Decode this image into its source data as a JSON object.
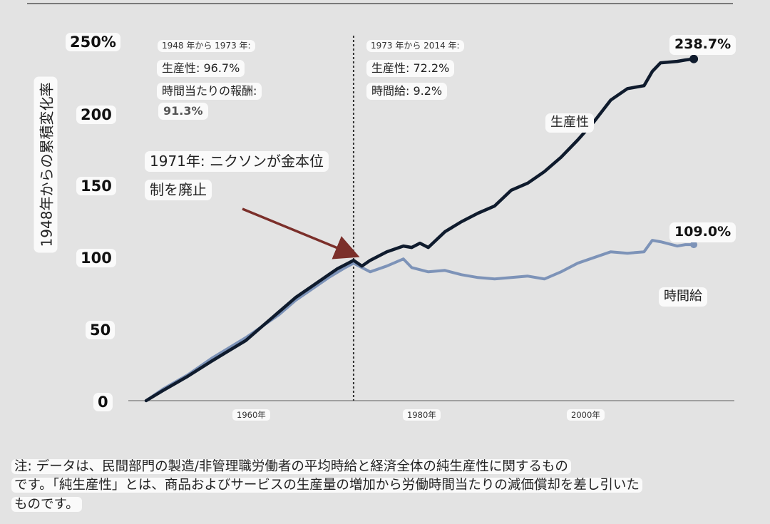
{
  "chart_data": {
    "type": "line",
    "ylabel": "1948年からの累積変化率",
    "y_ticks": [
      "250%",
      "200",
      "150",
      "100",
      "50",
      "0"
    ],
    "x_ticks": [
      "1960年",
      "1980年",
      "2000年"
    ],
    "xlim": [
      1948,
      2017
    ],
    "ylim": [
      0,
      250
    ],
    "grid": false,
    "series": [
      {
        "name": "生産性",
        "color": "#0f1b2d",
        "end_label": "238.7%",
        "x": [
          1948,
          1950,
          1953,
          1956,
          1958,
          1960,
          1962,
          1964,
          1966,
          1968,
          1970,
          1971,
          1973,
          1974,
          1975,
          1977,
          1979,
          1980,
          1981,
          1982,
          1984,
          1986,
          1988,
          1990,
          1992,
          1994,
          1996,
          1998,
          2000,
          2002,
          2004,
          2006,
          2008,
          2009,
          2010,
          2012,
          2013,
          2014
        ],
        "values": [
          0,
          7,
          17,
          28,
          35,
          42,
          52,
          62,
          72,
          80,
          88,
          92,
          98,
          94,
          98,
          104,
          108,
          107,
          110,
          107,
          118,
          125,
          131,
          136,
          147,
          152,
          160,
          170,
          182,
          195,
          210,
          218,
          220,
          230,
          236,
          237,
          238,
          238.7
        ]
      },
      {
        "name": "時間給",
        "color": "#7d93b8",
        "end_label": "109.0%",
        "x": [
          1948,
          1950,
          1953,
          1956,
          1958,
          1960,
          1962,
          1964,
          1966,
          1968,
          1970,
          1972,
          1973,
          1975,
          1977,
          1979,
          1980,
          1982,
          1984,
          1986,
          1988,
          1990,
          1992,
          1994,
          1996,
          1998,
          2000,
          2002,
          2004,
          2006,
          2008,
          2009,
          2010,
          2012,
          2013,
          2014
        ],
        "values": [
          0,
          8,
          18,
          30,
          37,
          44,
          52,
          60,
          70,
          78,
          86,
          93,
          96,
          90,
          94,
          99,
          93,
          90,
          91,
          88,
          86,
          85,
          86,
          87,
          85,
          90,
          96,
          100,
          104,
          103,
          104,
          112,
          111,
          108,
          109,
          109.0
        ]
      }
    ],
    "annotations": {
      "period1": {
        "heading": "1948 年から 1973 年:",
        "line1": "生産性: 96.7%",
        "line2": "時間当たりの報酬:",
        "line3": "91.3%"
      },
      "period2": {
        "heading": "1973 年から 2014 年:",
        "line1": "生産性: 72.2%",
        "line2": "時間給: 9.2%"
      },
      "nixon": {
        "line1": "1971年: ニクソンが金本位",
        "line2": "制を廃止"
      },
      "divider_year": 1973
    },
    "series_labels": {
      "productivity": "生産性",
      "wage": "時間給"
    }
  },
  "note": {
    "line1": "注: データは、民間部門の製造/非管理職労働者の平均時給と経済全体の純生産性に関するもの",
    "line2": "です。「純生産性」とは、商品およびサービスの生産量の増加から労働時間当たりの減価償却を差し引いた",
    "line3": "ものです。"
  },
  "colors": {
    "background": "#e3e3e3",
    "label_bg": "#fafafa",
    "arrow": "#7b2f2a"
  }
}
